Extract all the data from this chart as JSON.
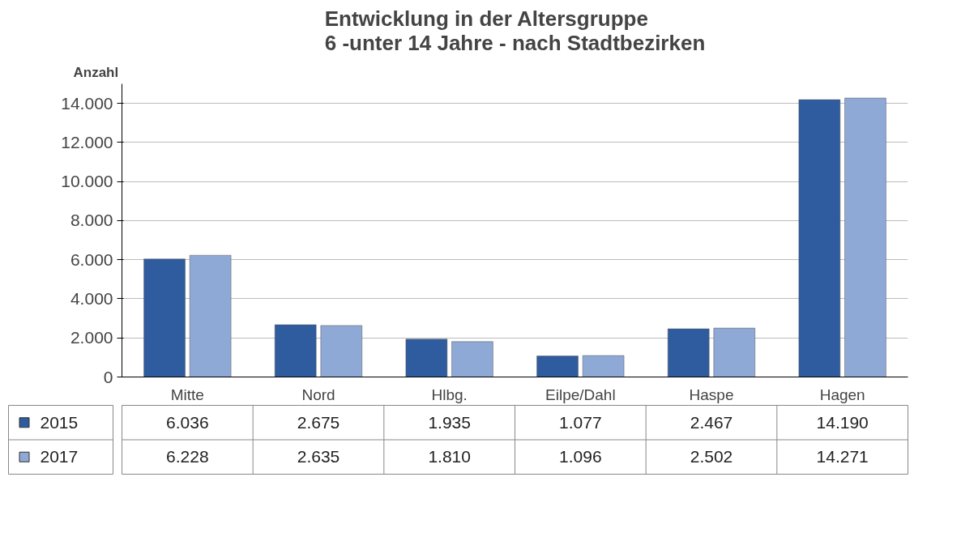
{
  "chart_data": {
    "type": "bar",
    "title": "Entwicklung in der Altersgruppe\n6 -unter 14 Jahre - nach Stadtbezirken",
    "ylabel": "Anzahl",
    "categories": [
      "Mitte",
      "Nord",
      "Hlbg.",
      "Eilpe/Dahl",
      "Haspe",
      "Hagen"
    ],
    "series": [
      {
        "name": "2015",
        "color": "#2e5c9e",
        "values": [
          6036,
          2675,
          1935,
          1077,
          2467,
          14190
        ],
        "value_labels": [
          "6.036",
          "2.675",
          "1.935",
          "1.077",
          "2.467",
          "14.190"
        ]
      },
      {
        "name": "2017",
        "color": "#8fa9d6",
        "values": [
          6228,
          2635,
          1810,
          1096,
          2502,
          14271
        ],
        "value_labels": [
          "6.228",
          "2.635",
          "1.810",
          "1.096",
          "2.502",
          "14.271"
        ]
      }
    ],
    "ylim": [
      0,
      15000
    ],
    "yticks": [
      0,
      {
        "value": 2000,
        "label": "2.000"
      },
      {
        "value": 4000,
        "label": "4.000"
      },
      {
        "value": 6000,
        "label": "6.000"
      },
      {
        "value": 8000,
        "label": "8.000"
      },
      {
        "value": 10000,
        "label": "10.000"
      },
      {
        "value": 12000,
        "label": "12.000"
      },
      {
        "value": 14000,
        "label": "14.000"
      }
    ],
    "grid": "y",
    "legend": "bottom"
  }
}
